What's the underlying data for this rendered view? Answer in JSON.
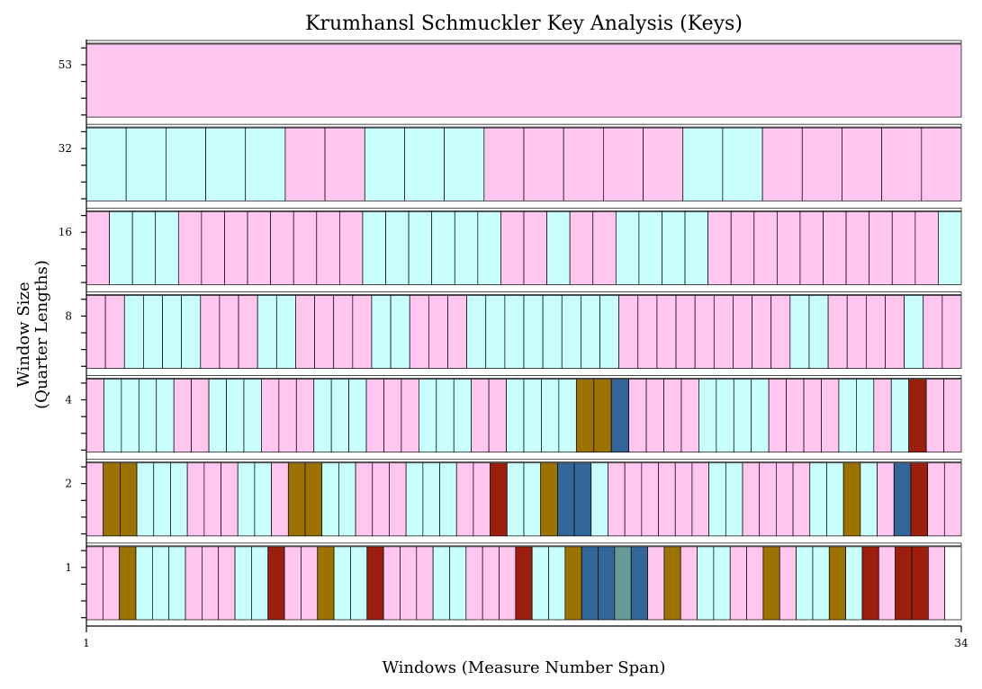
{
  "chart_data": {
    "type": "heatmap",
    "title": "Krumhansl Schmuckler Key Analysis (Keys)",
    "xlabel": "Windows (Measure Number Span)",
    "ylabel": [
      "Window Size",
      "(Quarter Lengths)"
    ],
    "x_ticks": [
      "1",
      "34"
    ],
    "xlim": [
      1,
      34
    ],
    "colors": {
      "P": "#ffc6f0",
      "C": "#c8fffd",
      "O": "#9c7300",
      "R": "#9c1e0c",
      "B": "#336698",
      "T": "#669b99",
      "W": "#ffffff"
    },
    "rows": [
      {
        "window": "53",
        "cells": "P"
      },
      {
        "window": "32",
        "cells": "CCCCCPPCCCPPPPPCCPPPPP"
      },
      {
        "window": "16",
        "cells": "PCCCPPPPPPPPCCCCCCPPCPPCCCCPPPPPPPPPPC"
      },
      {
        "window": "8",
        "cells": "PPCCCCPPPCCPPPPCCPPPCCCCCCCCPPPPPPPPPCCPPPPCPP"
      },
      {
        "window": "4",
        "cells": "PCCCCPPCCCPPPCCCPPPCCCPPCCCCOOBPPPPCCCCPPPPCCPCRPP"
      },
      {
        "window": "2",
        "cells": "POOCCCPPPCCPOOCCPPPCCCPPRCCOBBCPPPPPPCCPPPPCCOCPBRPP"
      },
      {
        "window": "1",
        "cells": "PPOCCCPPPCCRPPOCCRPPPCCPPPRCCOBBTBPOPCCPPOPCCOCRPRRPW"
      }
    ]
  }
}
